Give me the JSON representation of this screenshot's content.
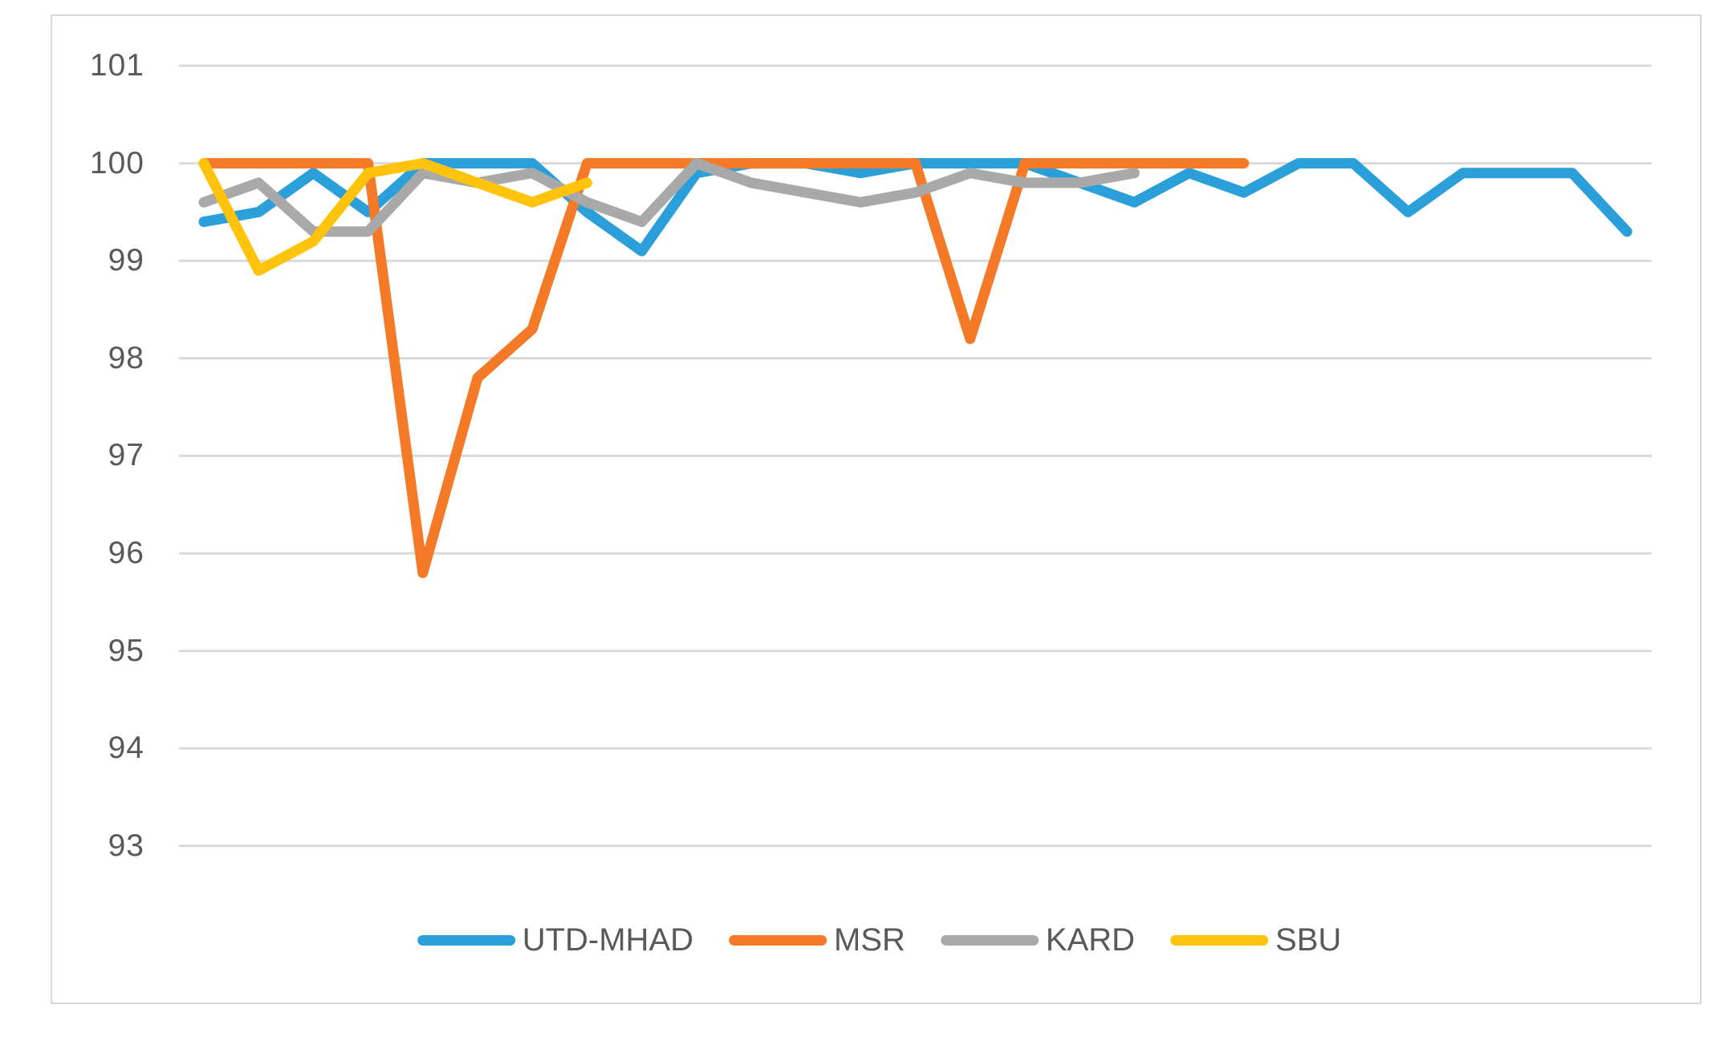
{
  "figure": {
    "background": "#ffffff",
    "frame_border_color": "#d8d8d8",
    "gridline_color": "#d9d9d9",
    "axis_label_color": "#595959"
  },
  "chart_data": {
    "type": "line",
    "title": "",
    "xlabel": "",
    "ylabel": "",
    "x_axis": {
      "tick_labels_visible": false,
      "num_points": 27
    },
    "y_axis": {
      "ticks": [
        101,
        100,
        99,
        98,
        97,
        96,
        95,
        94,
        93
      ],
      "min": 93,
      "max": 101
    },
    "grid": "horizontal",
    "legend_position": "bottom",
    "series": [
      {
        "name": "UTD-MHAD",
        "color": "#2B9FD9",
        "values": [
          99.4,
          99.5,
          99.9,
          99.5,
          100,
          100,
          100,
          99.5,
          99.1,
          99.9,
          100,
          100,
          99.9,
          100,
          100,
          100,
          99.8,
          99.6,
          99.9,
          99.7,
          100,
          100,
          99.5,
          99.9,
          99.9,
          99.9,
          99.3
        ]
      },
      {
        "name": "MSR",
        "color": "#F47A28",
        "values": [
          100,
          100,
          100,
          100,
          95.8,
          97.8,
          98.3,
          100,
          100,
          100,
          100,
          100,
          100,
          100,
          98.2,
          100,
          100,
          100,
          100,
          100
        ]
      },
      {
        "name": "KARD",
        "color": "#A9A9A9",
        "values": [
          99.6,
          99.8,
          99.3,
          99.3,
          99.9,
          99.8,
          99.9,
          99.6,
          99.4,
          100,
          99.8,
          99.7,
          99.6,
          99.7,
          99.9,
          99.8,
          99.8,
          99.9
        ]
      },
      {
        "name": "SBU",
        "color": "#FFC30B",
        "values": [
          100,
          98.9,
          99.2,
          99.9,
          100,
          99.8,
          99.6,
          99.8
        ]
      }
    ]
  }
}
